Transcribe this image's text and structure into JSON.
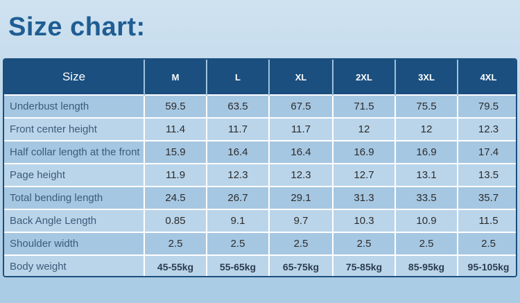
{
  "title": "Size chart:",
  "table": {
    "header": [
      "Size",
      "M",
      "L",
      "XL",
      "2XL",
      "3XL",
      "4XL"
    ],
    "rows": [
      {
        "label": "Underbust length",
        "values": [
          "59.5",
          "63.5",
          "67.5",
          "71.5",
          "75.5",
          "79.5"
        ]
      },
      {
        "label": "Front center height",
        "values": [
          "11.4",
          "11.7",
          "11.7",
          "12",
          "12",
          "12.3"
        ]
      },
      {
        "label": "Half collar length at the front",
        "values": [
          "15.9",
          "16.4",
          "16.4",
          "16.9",
          "16.9",
          "17.4"
        ]
      },
      {
        "label": "Page height",
        "values": [
          "11.9",
          "12.3",
          "12.3",
          "12.7",
          "13.1",
          "13.5"
        ]
      },
      {
        "label": "Total bending length",
        "values": [
          "24.5",
          "26.7",
          "29.1",
          "31.3",
          "33.5",
          "35.7"
        ]
      },
      {
        "label": "Back Angle Length",
        "values": [
          "0.85",
          "9.1",
          "9.7",
          "10.3",
          "10.9",
          "11.5"
        ]
      },
      {
        "label": "Shoulder width",
        "values": [
          "2.5",
          "2.5",
          "2.5",
          "2.5",
          "2.5",
          "2.5"
        ]
      },
      {
        "label": "Body weight",
        "values": [
          "45-55kg",
          "55-65kg",
          "65-75kg",
          "75-85kg",
          "85-95kg",
          "95-105kg"
        ]
      }
    ]
  },
  "colors": {
    "title": "#1f5d93",
    "header_bg": "#1b4f7f",
    "header_text": "#ffffff",
    "row_bg": "#bad5ea",
    "row_alt_bg": "#a6c7e2"
  }
}
